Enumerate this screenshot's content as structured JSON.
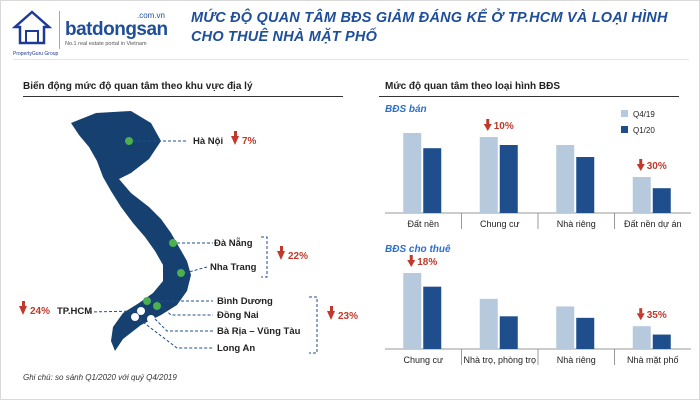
{
  "header": {
    "logo_sub": "PropertyGuru Group",
    "brand_name": "batdongsan",
    "brand_domain": ".com.vn",
    "brand_tag": "No.1 real estate portal in Vietnam",
    "title": "MỨC ĐỘ QUAN TÂM BĐS GIẢM ĐÁNG KỂ Ở TP.HCM VÀ LOẠI HÌNH CHO THUÊ NHÀ MẶT PHỐ"
  },
  "left": {
    "title": "Biến động mức độ quan tâm theo khu vực địa lý",
    "cities": {
      "hanoi": "Hà Nội",
      "danang": "Đà Nẵng",
      "nhatrang": "Nha Trang",
      "hcm": "TP.HCM",
      "binhduong": "Bình Dương",
      "dongnai": "Đồng Nai",
      "baria": "Bà Rịa – Vũng Tàu",
      "longan": "Long An"
    },
    "changes": {
      "hanoi": "7%",
      "central": "22%",
      "hcm": "24%",
      "south": "23%"
    },
    "footnote": "Ghi chú: so sánh Q1/2020 với quý Q4/2019"
  },
  "right": {
    "title": "Mức độ quan tâm theo loại hình BĐS"
  },
  "colors": {
    "q4": "#b7c9dc",
    "q1": "#1f4e8c",
    "down": "#c0392b",
    "title": "#1f4e9a"
  },
  "chart_data": [
    {
      "type": "bar",
      "title": "BĐS bán",
      "categories": [
        "Đất nền",
        "Chung cư",
        "Nhà riêng",
        "Đất nền dự án"
      ],
      "series": [
        {
          "name": "Q4/19",
          "values": [
            100,
            95,
            85,
            45
          ]
        },
        {
          "name": "Q1/20",
          "values": [
            81,
            85,
            70,
            31
          ]
        }
      ],
      "annotations": [
        {
          "category": "Chung cư",
          "text": "10%",
          "direction": "down"
        },
        {
          "category": "Đất nền dự án",
          "text": "30%",
          "direction": "down"
        }
      ],
      "legend": "top-right",
      "ylim": [
        0,
        100
      ]
    },
    {
      "type": "bar",
      "title": "BĐS cho thuê",
      "categories": [
        "Chung cư",
        "Nhà trọ, phòng trọ",
        "Nhà riêng",
        "Nhà mặt phố"
      ],
      "series": [
        {
          "name": "Q4/19",
          "values": [
            100,
            66,
            56,
            30
          ]
        },
        {
          "name": "Q1/20",
          "values": [
            82,
            43,
            41,
            19
          ]
        }
      ],
      "annotations": [
        {
          "category": "Chung cư",
          "text": "18%",
          "direction": "down"
        },
        {
          "category": "Nhà mặt phố",
          "text": "35%",
          "direction": "down"
        }
      ],
      "ylim": [
        0,
        100
      ]
    }
  ]
}
